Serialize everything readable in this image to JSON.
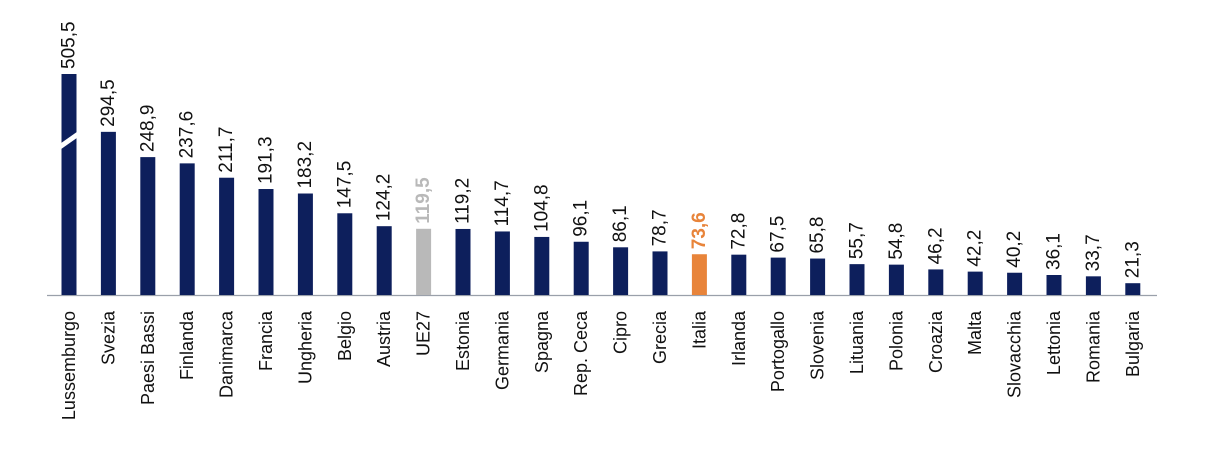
{
  "chart_data": {
    "type": "bar",
    "title": "",
    "xlabel": "",
    "ylabel": "",
    "truncated_bar_category": "Lussemburgo",
    "colors": {
      "default": "#0d1f5c",
      "average": "#b9b9b9",
      "highlight": "#e8843a",
      "axis": "#9aa0aa"
    },
    "bars": [
      {
        "category": "Lussemburgo",
        "label": "505,5",
        "value": 505.5,
        "color": "default"
      },
      {
        "category": "Svezia",
        "label": "294,5",
        "value": 294.5,
        "color": "default"
      },
      {
        "category": "Paesi Bassi",
        "label": "248,9",
        "value": 248.9,
        "color": "default"
      },
      {
        "category": "Finlanda",
        "label": "237,6",
        "value": 237.6,
        "color": "default"
      },
      {
        "category": "Danimarca",
        "label": "211,7",
        "value": 211.7,
        "color": "default"
      },
      {
        "category": "Francia",
        "label": "191,3",
        "value": 191.3,
        "color": "default"
      },
      {
        "category": "Ungheria",
        "label": "183,2",
        "value": 183.2,
        "color": "default"
      },
      {
        "category": "Belgio",
        "label": "147,5",
        "value": 147.5,
        "color": "default"
      },
      {
        "category": "Austria",
        "label": "124,2",
        "value": 124.2,
        "color": "default"
      },
      {
        "category": "UE27",
        "label": "119,5",
        "value": 119.5,
        "color": "average"
      },
      {
        "category": "Estonia",
        "label": "119,2",
        "value": 119.2,
        "color": "default"
      },
      {
        "category": "Germania",
        "label": "114,7",
        "value": 114.7,
        "color": "default"
      },
      {
        "category": "Spagna",
        "label": "104,8",
        "value": 104.8,
        "color": "default"
      },
      {
        "category": "Rep. Ceca",
        "label": "96,1",
        "value": 96.1,
        "color": "default"
      },
      {
        "category": "Cipro",
        "label": "86,1",
        "value": 86.1,
        "color": "default"
      },
      {
        "category": "Grecia",
        "label": "78,7",
        "value": 78.7,
        "color": "default"
      },
      {
        "category": "Italia",
        "label": "73,6",
        "value": 73.6,
        "color": "highlight"
      },
      {
        "category": "Irlanda",
        "label": "72,8",
        "value": 72.8,
        "color": "default"
      },
      {
        "category": "Portogallo",
        "label": "67,5",
        "value": 67.5,
        "color": "default"
      },
      {
        "category": "Slovenia",
        "label": "65,8",
        "value": 65.8,
        "color": "default"
      },
      {
        "category": "Lituania",
        "label": "55,7",
        "value": 55.7,
        "color": "default"
      },
      {
        "category": "Polonia",
        "label": "54,8",
        "value": 54.8,
        "color": "default"
      },
      {
        "category": "Croazia",
        "label": "46,2",
        "value": 46.2,
        "color": "default"
      },
      {
        "category": "Malta",
        "label": "42,2",
        "value": 42.2,
        "color": "default"
      },
      {
        "category": "Slovacchia",
        "label": "40,2",
        "value": 40.2,
        "color": "default"
      },
      {
        "category": "Lettonia",
        "label": "36,1",
        "value": 36.1,
        "color": "default"
      },
      {
        "category": "Romania",
        "label": "33,7",
        "value": 33.7,
        "color": "default"
      },
      {
        "category": "Bulgaria",
        "label": "21,3",
        "value": 21.3,
        "color": "default"
      }
    ]
  }
}
